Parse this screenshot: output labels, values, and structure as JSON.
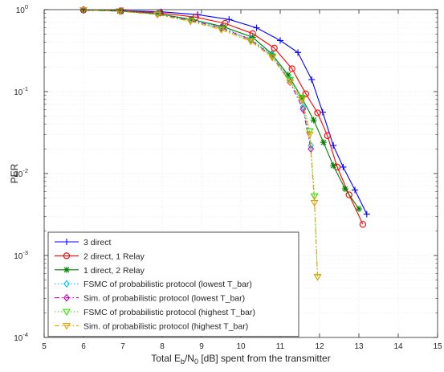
{
  "chart_data": {
    "type": "line",
    "xlabel_parts": {
      "pre": "Total E",
      "sub1": "b",
      "mid": "/N",
      "sub2": "0",
      "post": " [dB] spent from the transmitter"
    },
    "ylabel": "PER",
    "xlim": [
      5,
      15
    ],
    "ylim": [
      0.0001,
      1
    ],
    "yscale": "log",
    "grid": true,
    "minor_grid": true,
    "legend_position": "bottom-left",
    "x_ticks": [
      "5",
      "6",
      "7",
      "8",
      "9",
      "10",
      "11",
      "12",
      "13",
      "14",
      "15"
    ],
    "y_ticks": [
      {
        "base": "10",
        "exp": "0"
      },
      {
        "base": "10",
        "exp": "-1"
      },
      {
        "base": "10",
        "exp": "-2"
      },
      {
        "base": "10",
        "exp": "-3"
      },
      {
        "base": "10",
        "exp": "-4"
      }
    ],
    "series": [
      {
        "name": "3 direct",
        "color": "#0000ff",
        "marker": "plus",
        "dash": "solid",
        "x": [
          6.0,
          7.0,
          7.97,
          8.9,
          9.7,
          10.4,
          11.0,
          11.45,
          11.8,
          12.08,
          12.35,
          12.6,
          12.9,
          13.2
        ],
        "y": [
          0.99,
          0.97,
          0.94,
          0.87,
          0.76,
          0.6,
          0.42,
          0.3,
          0.14,
          0.056,
          0.022,
          0.012,
          0.0063,
          0.0032
        ]
      },
      {
        "name": "2 direct, 1 Relay",
        "color": "#ff0000",
        "marker": "circle",
        "dash": "solid",
        "x": [
          6.0,
          6.95,
          7.95,
          8.85,
          9.6,
          10.3,
          10.85,
          11.3,
          11.65,
          11.95,
          12.2,
          12.45,
          12.75,
          13.1
        ],
        "y": [
          0.99,
          0.965,
          0.91,
          0.81,
          0.68,
          0.51,
          0.34,
          0.19,
          0.094,
          0.055,
          0.029,
          0.012,
          0.0055,
          0.0024
        ]
      },
      {
        "name": "1 direct, 2 Relay",
        "color": "#007f00",
        "marker": "star",
        "dash": "solid",
        "x": [
          6.0,
          6.92,
          7.9,
          8.75,
          9.55,
          10.3,
          10.78,
          11.2,
          11.55,
          11.85,
          12.1,
          12.35,
          12.65,
          13.0
        ],
        "y": [
          0.99,
          0.96,
          0.89,
          0.76,
          0.62,
          0.46,
          0.29,
          0.16,
          0.084,
          0.045,
          0.024,
          0.0125,
          0.0065,
          0.0037
        ]
      },
      {
        "name": "FSMC of probabilistic protocol (lowest T_bar)",
        "color": "#00c8e6",
        "marker": "diamond",
        "dash": "dotted",
        "x": [
          6.0,
          6.92,
          7.88,
          8.72,
          9.5,
          10.25,
          10.8,
          11.25,
          11.58,
          11.78
        ],
        "y": [
          0.99,
          0.96,
          0.89,
          0.75,
          0.61,
          0.44,
          0.28,
          0.14,
          0.065,
          0.022
        ]
      },
      {
        "name": "Sim. of probabilistic protocol (lowest T_bar)",
        "color": "#c000c0",
        "marker": "diamond",
        "dash": "dashdot",
        "x": [
          6.0,
          6.92,
          7.88,
          8.72,
          9.5,
          10.25,
          10.8,
          11.25,
          11.58,
          11.78
        ],
        "y": [
          0.99,
          0.955,
          0.88,
          0.74,
          0.6,
          0.43,
          0.27,
          0.13,
          0.061,
          0.02
        ]
      },
      {
        "name": "FSMC of probabilistic protocol (highest T_bar)",
        "color": "#33dd00",
        "marker": "triangle-down",
        "dash": "dotted",
        "x": [
          6.0,
          6.92,
          7.88,
          8.72,
          9.5,
          10.25,
          10.8,
          11.25,
          11.55,
          11.75,
          11.87,
          11.95
        ],
        "y": [
          0.99,
          0.96,
          0.88,
          0.73,
          0.58,
          0.42,
          0.27,
          0.14,
          0.085,
          0.033,
          0.0053,
          0.00055
        ]
      },
      {
        "name": "Sim. of probabilistic protocol (highest T_bar)",
        "color": "#e6a000",
        "marker": "triangle-down",
        "dash": "dashdot",
        "x": [
          6.0,
          6.92,
          7.88,
          8.72,
          9.5,
          10.25,
          10.8,
          11.25,
          11.55,
          11.75,
          11.87,
          11.95
        ],
        "y": [
          0.99,
          0.955,
          0.87,
          0.72,
          0.57,
          0.41,
          0.26,
          0.13,
          0.08,
          0.03,
          0.0044,
          0.00055
        ]
      }
    ]
  }
}
